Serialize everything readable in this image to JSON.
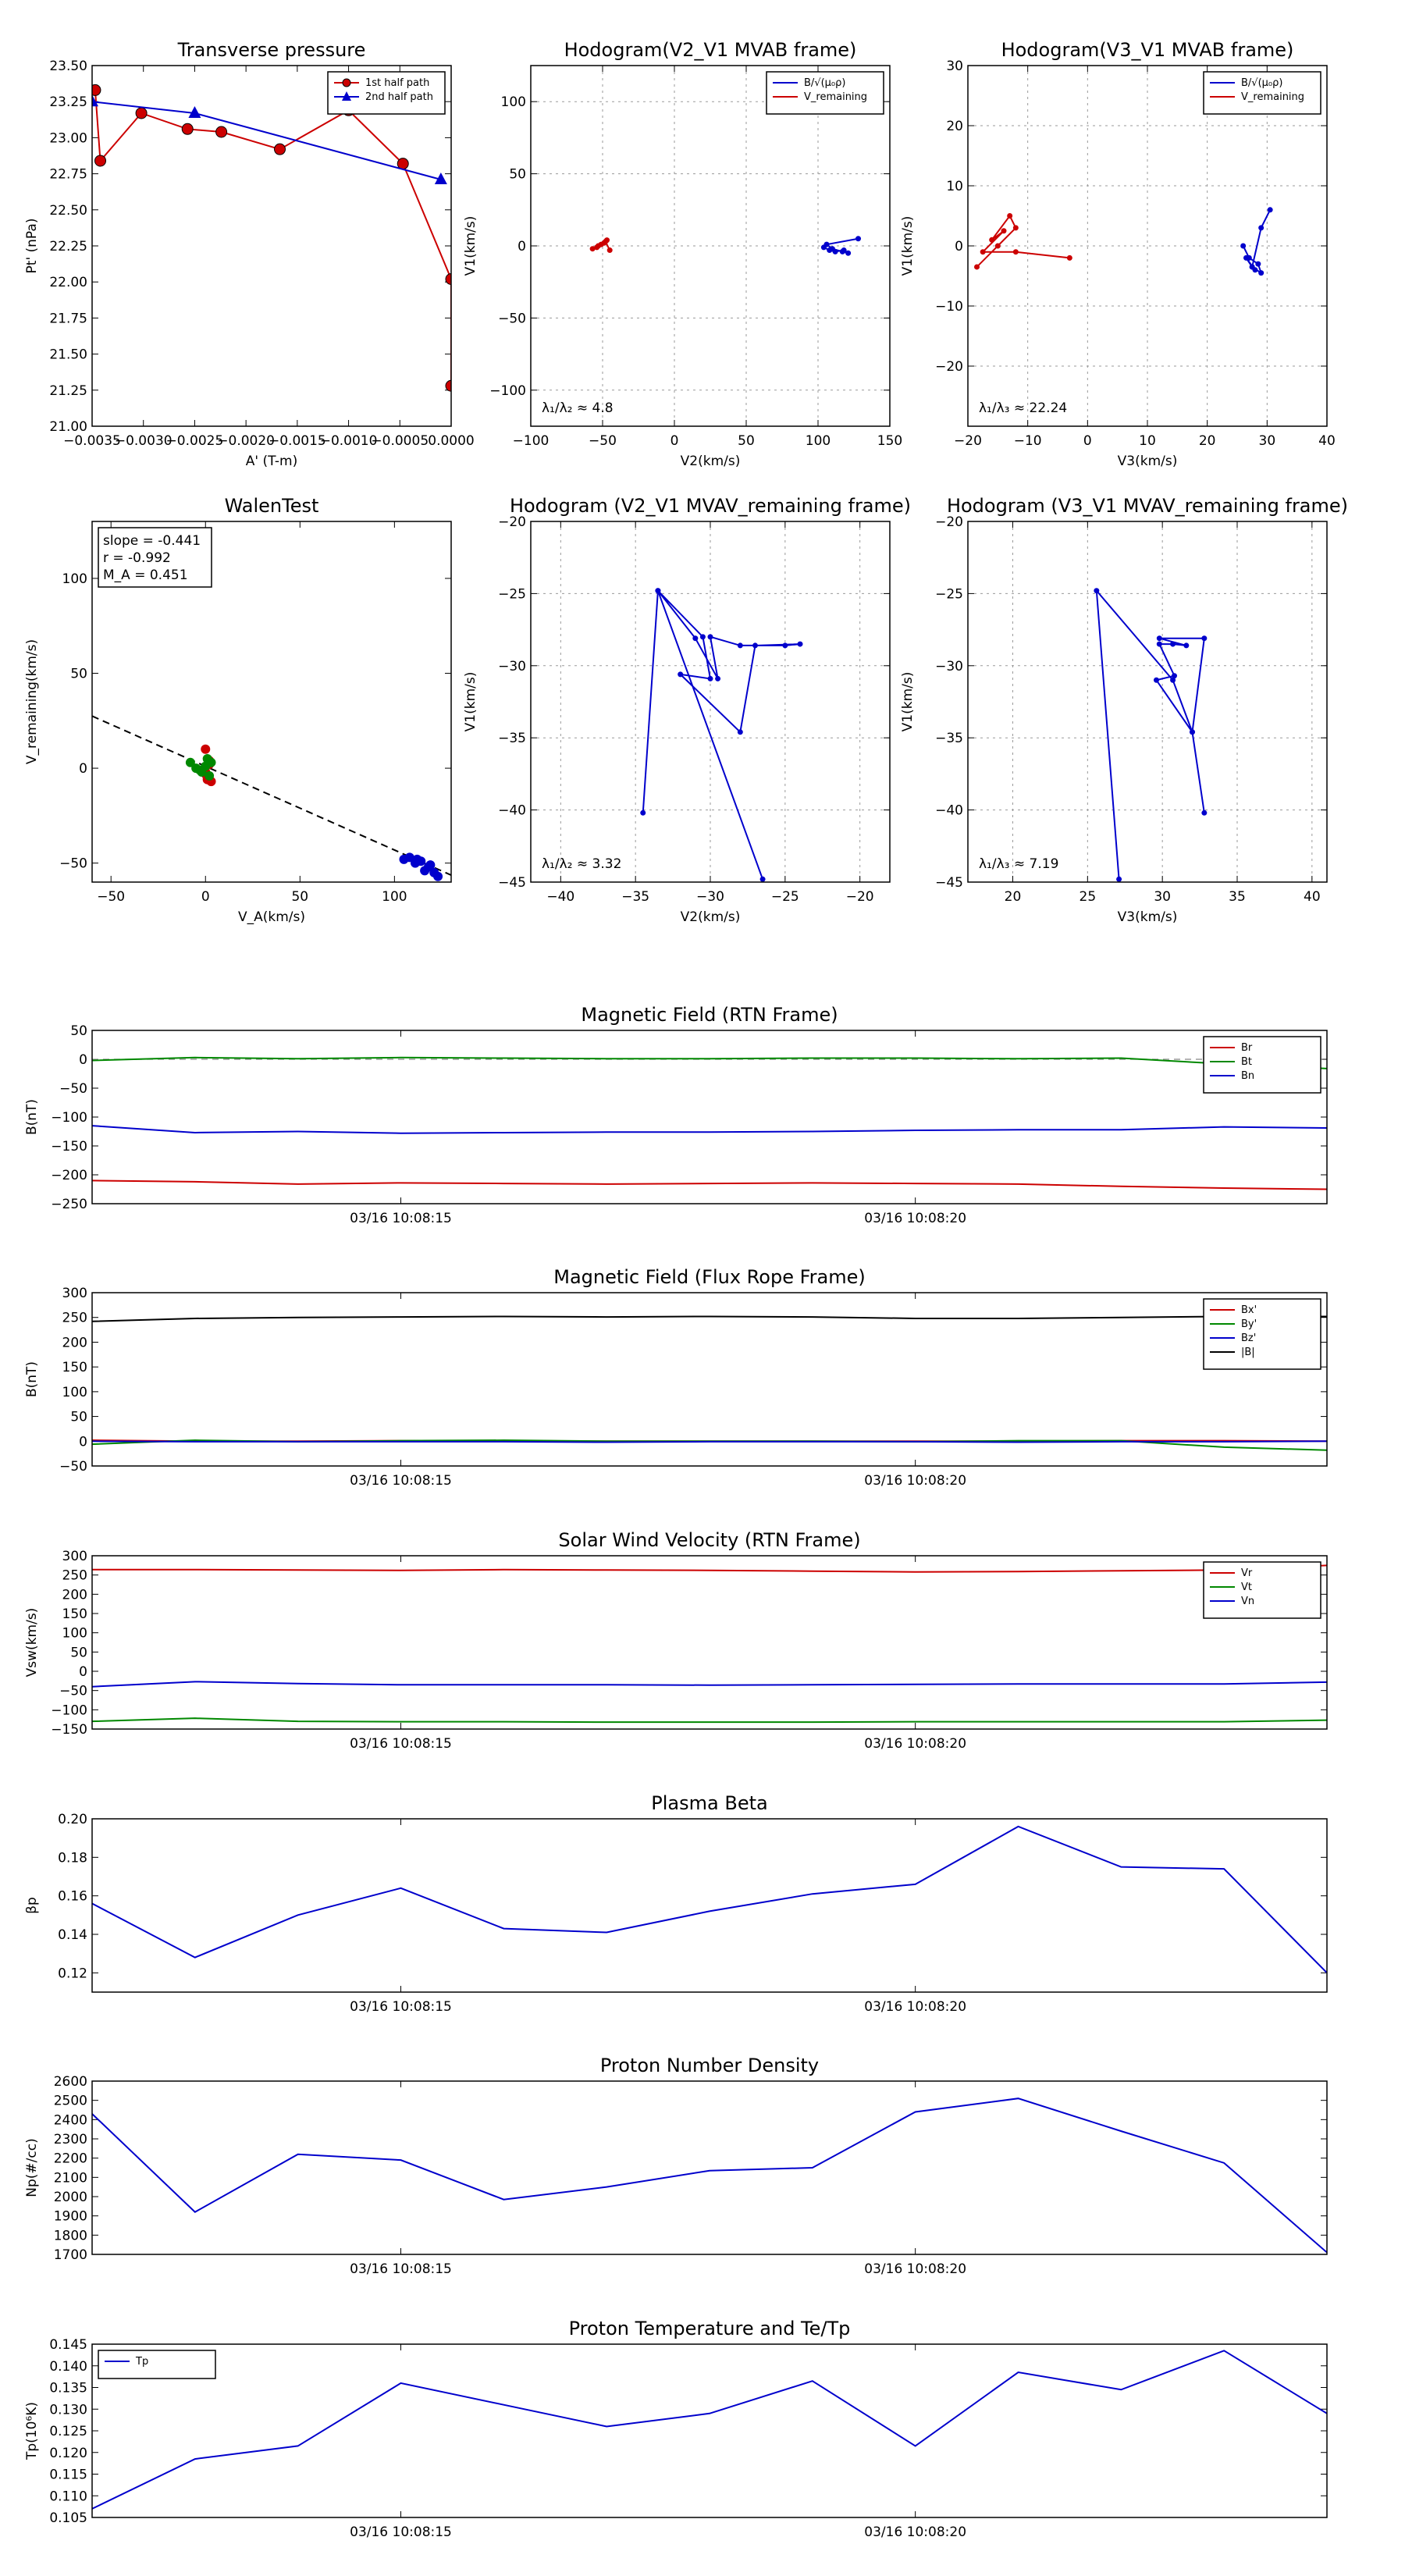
{
  "chart_data": [
    {
      "id": "pt",
      "type": "line",
      "title": "Transverse pressure",
      "xlabel": "A' (T-m)",
      "ylabel": "Pt' (nPa)",
      "xlim": [
        -0.0035,
        0.0
      ],
      "ylim": [
        21.0,
        23.5
      ],
      "xticks": [
        -0.0035,
        -0.003,
        -0.0025,
        -0.002,
        -0.0015,
        -0.001,
        -0.0005,
        0.0
      ],
      "xticklabels": [
        "−0.0035",
        "−0.0030",
        "−0.0025",
        "−0.0020",
        "−0.0015",
        "−0.0010",
        "−0.0005",
        "0.0000"
      ],
      "yticks": [
        21.0,
        21.25,
        21.5,
        21.75,
        22.0,
        22.25,
        22.5,
        22.75,
        23.0,
        23.25,
        23.5
      ],
      "yticklabels": [
        "21.00",
        "21.25",
        "21.50",
        "21.75",
        "22.00",
        "22.25",
        "22.50",
        "22.75",
        "23.00",
        "23.25",
        "23.50"
      ],
      "grid": false,
      "legend": "top-right",
      "series": [
        {
          "name": "1st half path",
          "color": "#cc0000",
          "marker": "circle",
          "x": [
            -0.00347,
            -0.00342,
            -0.00302,
            -0.00257,
            -0.00224,
            -0.00167,
            -0.001,
            -0.00047,
            0.0,
            0.0
          ],
          "y": [
            23.33,
            22.84,
            23.17,
            23.06,
            23.04,
            22.92,
            23.19,
            22.82,
            22.02,
            21.28
          ]
        },
        {
          "name": "2nd half path",
          "color": "#0000cc",
          "marker": "triangle",
          "x": [
            -0.0035,
            -0.0025,
            -0.0001
          ],
          "y": [
            23.25,
            23.17,
            22.71
          ]
        }
      ]
    },
    {
      "id": "h21",
      "type": "line",
      "title": "Hodogram(V2_V1 MVAB frame)",
      "xlabel": "V2(km/s)",
      "ylabel": "V1(km/s)",
      "xlim": [
        -100,
        150
      ],
      "ylim": [
        -125,
        125
      ],
      "xticks": [
        -100,
        -50,
        0,
        50,
        100,
        150
      ],
      "yticks": [
        -100,
        -50,
        0,
        50,
        100
      ],
      "grid": true,
      "legend": "top-right",
      "annotation": "λ₁/λ₂ ≈ 4.8",
      "series": [
        {
          "name": "B/√(μ₀ρ)",
          "color": "#0000cc",
          "x": [
            104,
            108,
            112,
            118,
            121,
            117,
            110,
            106,
            128
          ],
          "y": [
            -1,
            -3,
            -4,
            -3,
            -5,
            -4,
            -2,
            1,
            5
          ]
        },
        {
          "name": "V_remaining",
          "color": "#cc0000",
          "x": [
            -57,
            -53,
            -49,
            -47,
            -51,
            -54,
            -48,
            -45
          ],
          "y": [
            -2,
            0,
            2,
            4,
            1,
            -1,
            3,
            -3
          ]
        }
      ]
    },
    {
      "id": "h31",
      "type": "line",
      "title": "Hodogram(V3_V1 MVAB frame)",
      "xlabel": "V3(km/s)",
      "ylabel": "V1(km/s)",
      "xlim": [
        -20,
        40
      ],
      "ylim": [
        -30,
        30
      ],
      "xticks": [
        -20,
        -10,
        0,
        10,
        20,
        30,
        40
      ],
      "yticks": [
        -20,
        -10,
        0,
        10,
        20,
        30
      ],
      "grid": true,
      "legend": "top-right",
      "annotation": "λ₁/λ₃ ≈ 22.24",
      "series": [
        {
          "name": "B/√(μ₀ρ)",
          "color": "#0000cc",
          "x": [
            26,
            27,
            28.5,
            29,
            27.5,
            28,
            26.5,
            27.5,
            29,
            30.5
          ],
          "y": [
            0,
            -2,
            -3,
            -4.5,
            -3.5,
            -4,
            -2,
            -3.5,
            3,
            6
          ]
        },
        {
          "name": "V_remaining",
          "color": "#cc0000",
          "x": [
            -18.5,
            -15,
            -12,
            -13,
            -16,
            -14,
            -17.5,
            -12,
            -3
          ],
          "y": [
            -3.5,
            0,
            3,
            5,
            1,
            2.5,
            -1,
            -1,
            -2
          ]
        }
      ]
    },
    {
      "id": "walen",
      "type": "scatter",
      "title": "WalenTest",
      "xlabel": "V_A(km/s)",
      "ylabel": "V_remaining(km/s)",
      "xlim": [
        -60,
        130
      ],
      "ylim": [
        -60,
        130
      ],
      "xticks": [
        -50,
        0,
        50,
        100
      ],
      "yticks": [
        -50,
        0,
        50,
        100
      ],
      "grid": false,
      "stats": [
        "slope = -0.441",
        "r = -0.992",
        "M_A = 0.451"
      ],
      "fit": {
        "slope": -0.441,
        "intercept": 1.0,
        "color": "#000000",
        "dash": true
      },
      "series": [
        {
          "color": "#0000cc",
          "x": [
            105,
            108,
            111,
            114,
            116,
            119,
            121,
            123,
            118,
            112
          ],
          "y": [
            -48,
            -47,
            -50,
            -49,
            -54,
            -51,
            -55,
            -57,
            -52,
            -48
          ]
        },
        {
          "color": "#cc0000",
          "x": [
            0,
            2,
            0,
            1,
            3,
            0,
            2,
            1
          ],
          "y": [
            10,
            2,
            -3,
            -5,
            -7,
            -2,
            4,
            -6
          ]
        },
        {
          "color": "#008800",
          "x": [
            -8,
            -5,
            -2,
            1,
            3,
            -3,
            0,
            2
          ],
          "y": [
            3,
            0,
            -2,
            5,
            3,
            -1,
            1,
            -4
          ]
        }
      ]
    },
    {
      "id": "h21r",
      "type": "line",
      "title": "Hodogram (V2_V1 MVAV_remaining frame)",
      "xlabel": "V2(km/s)",
      "ylabel": "V1(km/s)",
      "xlim": [
        -42,
        -18
      ],
      "ylim": [
        -45,
        -20
      ],
      "xticks": [
        -40,
        -35,
        -30,
        -25,
        -20
      ],
      "yticks": [
        -45,
        -40,
        -35,
        -30,
        -25,
        -20
      ],
      "grid": true,
      "annotation": "λ₁/λ₂ ≈ 3.32",
      "series": [
        {
          "color": "#0000cc",
          "x": [
            -34.5,
            -33.5,
            -31,
            -29.5,
            -30,
            -28,
            -25,
            -24,
            -27,
            -28,
            -32,
            -30,
            -30.5,
            -33.5,
            -26.5
          ],
          "y": [
            -40.2,
            -24.8,
            -28.1,
            -30.9,
            -28,
            -28.6,
            -28.6,
            -28.5,
            -28.6,
            -34.6,
            -30.6,
            -30.9,
            -28,
            -24.8,
            -44.8
          ]
        }
      ]
    },
    {
      "id": "h31r",
      "type": "line",
      "title": "Hodogram (V3_V1 MVAV_remaining frame)",
      "xlabel": "V3(km/s)",
      "ylabel": "V1(km/s)",
      "xlim": [
        17,
        41
      ],
      "ylim": [
        -45,
        -20
      ],
      "xticks": [
        20,
        25,
        30,
        35,
        40
      ],
      "yticks": [
        -45,
        -40,
        -35,
        -30,
        -25,
        -20
      ],
      "grid": true,
      "annotation": "λ₁/λ₃ ≈ 7.19",
      "series": [
        {
          "color": "#0000cc",
          "x": [
            32.8,
            32,
            29.6,
            30.8,
            29.8,
            30.7,
            31.6,
            29.8,
            32.8,
            32,
            30.7,
            25.6,
            27.1
          ],
          "y": [
            -40.2,
            -34.6,
            -31,
            -30.7,
            -28.5,
            -28.5,
            -28.6,
            -28.1,
            -28.1,
            -34.6,
            -31,
            -24.8,
            -44.8
          ]
        }
      ]
    },
    {
      "id": "bmag",
      "type": "line",
      "title": "Magnetic Field (RTN Frame)",
      "xlabel": "",
      "ylabel": "B(nT)",
      "xlim": [
        0,
        12
      ],
      "ylim": [
        -250,
        50
      ],
      "xticks": [
        3,
        8
      ],
      "xticklabels": [
        "03/16 10:08:15",
        "03/16 10:08:20"
      ],
      "yticks": [
        -250,
        -200,
        -150,
        -100,
        -50,
        0,
        50
      ],
      "grid": false,
      "legend": "top-right",
      "zero_line": true,
      "series": [
        {
          "name": "Br",
          "color": "#cc0000",
          "y": [
            -210,
            -212,
            -216,
            -214,
            -215,
            -216,
            -215,
            -214,
            -215,
            -216,
            -220,
            -223,
            -225
          ]
        },
        {
          "name": "Bt",
          "color": "#008800",
          "y": [
            -2,
            3,
            1,
            3,
            2,
            1,
            1,
            2,
            2,
            1,
            2,
            -8,
            -16
          ]
        },
        {
          "name": "Bn",
          "color": "#0000cc",
          "y": [
            -115,
            -127,
            -125,
            -128,
            -127,
            -126,
            -126,
            -125,
            -123,
            -122,
            -122,
            -117,
            -119
          ]
        }
      ]
    },
    {
      "id": "bfr",
      "type": "line",
      "title": "Magnetic Field (Flux Rope Frame)",
      "xlabel": "",
      "ylabel": "B(nT)",
      "xlim": [
        0,
        12
      ],
      "ylim": [
        -50,
        300
      ],
      "xticks": [
        3,
        8
      ],
      "xticklabels": [
        "03/16 10:08:15",
        "03/16 10:08:20"
      ],
      "yticks": [
        -50,
        0,
        50,
        100,
        150,
        200,
        250,
        300
      ],
      "grid": false,
      "legend": "top-right",
      "zero_line": true,
      "series": [
        {
          "name": "Bx'",
          "color": "#cc0000",
          "y": [
            2,
            0,
            0,
            1,
            1,
            0,
            0,
            0,
            0,
            0,
            1,
            1,
            0
          ]
        },
        {
          "name": "By'",
          "color": "#008800",
          "y": [
            -6,
            2,
            -1,
            1,
            2,
            0,
            0,
            0,
            -1,
            1,
            1,
            -12,
            -18
          ]
        },
        {
          "name": "Bz'",
          "color": "#0000cc",
          "y": [
            0,
            -1,
            -1,
            -1,
            -1,
            -2,
            -1,
            -1,
            -1,
            -2,
            -1,
            -1,
            0
          ]
        },
        {
          "name": "|B|",
          "color": "#000000",
          "y": [
            242,
            248,
            250,
            251,
            252,
            251,
            252,
            251,
            248,
            248,
            250,
            252,
            252
          ]
        }
      ]
    },
    {
      "id": "vsw",
      "type": "line",
      "title": "Solar Wind Velocity (RTN Frame)",
      "xlabel": "",
      "ylabel": "Vsw(km/s)",
      "xlim": [
        0,
        12
      ],
      "ylim": [
        -150,
        300
      ],
      "xticks": [
        3,
        8
      ],
      "xticklabels": [
        "03/16 10:08:15",
        "03/16 10:08:20"
      ],
      "yticks": [
        -150,
        -100,
        -50,
        0,
        50,
        100,
        150,
        200,
        250,
        300
      ],
      "grid": false,
      "legend": "top-right",
      "series": [
        {
          "name": "Vr",
          "color": "#cc0000",
          "y": [
            264,
            264,
            263,
            262,
            264,
            263,
            262,
            260,
            258,
            259,
            261,
            263,
            275
          ]
        },
        {
          "name": "Vt",
          "color": "#008800",
          "y": [
            -130,
            -122,
            -130,
            -131,
            -131,
            -132,
            -132,
            -132,
            -131,
            -131,
            -131,
            -131,
            -127
          ]
        },
        {
          "name": "Vn",
          "color": "#0000cc",
          "y": [
            -40,
            -27,
            -32,
            -35,
            -35,
            -35,
            -36,
            -35,
            -34,
            -33,
            -33,
            -33,
            -28
          ]
        }
      ]
    },
    {
      "id": "beta",
      "type": "line",
      "title": "Plasma Beta",
      "xlabel": "",
      "ylabel": "βp",
      "xlim": [
        0,
        12
      ],
      "ylim": [
        0.11,
        0.2
      ],
      "xticks": [
        3,
        8
      ],
      "xticklabels": [
        "03/16 10:08:15",
        "03/16 10:08:20"
      ],
      "yticks": [
        0.12,
        0.14,
        0.16,
        0.18,
        0.2
      ],
      "yticklabels": [
        "0.12",
        "0.14",
        "0.16",
        "0.18",
        "0.20"
      ],
      "grid": false,
      "series": [
        {
          "color": "#0000cc",
          "y": [
            0.156,
            0.128,
            0.15,
            0.164,
            0.143,
            0.141,
            0.152,
            0.161,
            0.166,
            0.196,
            0.175,
            0.174,
            0.12
          ]
        }
      ]
    },
    {
      "id": "np",
      "type": "line",
      "title": "Proton Number Density",
      "xlabel": "",
      "ylabel": "Np(#/cc)",
      "xlim": [
        0,
        12
      ],
      "ylim": [
        1700,
        2600
      ],
      "xticks": [
        3,
        8
      ],
      "xticklabels": [
        "03/16 10:08:15",
        "03/16 10:08:20"
      ],
      "yticks": [
        1700,
        1800,
        1900,
        2000,
        2100,
        2200,
        2300,
        2400,
        2500,
        2600
      ],
      "grid": false,
      "series": [
        {
          "color": "#0000cc",
          "y": [
            2430,
            1920,
            2220,
            2190,
            1985,
            2050,
            2135,
            2150,
            2440,
            2510,
            2340,
            2175,
            1710
          ]
        }
      ]
    },
    {
      "id": "tp",
      "type": "line",
      "title": "Proton Temperature and Te/Tp",
      "xlabel": "",
      "ylabel": "Tp(10⁶K)",
      "xlim": [
        0,
        12
      ],
      "ylim": [
        0.105,
        0.145
      ],
      "xticks": [
        3,
        8
      ],
      "xticklabels": [
        "03/16 10:08:15",
        "03/16 10:08:20"
      ],
      "yticks": [
        0.105,
        0.11,
        0.115,
        0.12,
        0.125,
        0.13,
        0.135,
        0.14,
        0.145
      ],
      "yticklabels": [
        "0.105",
        "0.110",
        "0.115",
        "0.120",
        "0.125",
        "0.130",
        "0.135",
        "0.140",
        "0.145"
      ],
      "grid": false,
      "legend": "top-left",
      "series": [
        {
          "name": "Tp",
          "color": "#0000cc",
          "y": [
            0.107,
            0.1185,
            0.1215,
            0.136,
            0.131,
            0.126,
            0.129,
            0.1365,
            0.1215,
            0.1385,
            0.1345,
            0.1435,
            0.129
          ]
        }
      ]
    }
  ]
}
